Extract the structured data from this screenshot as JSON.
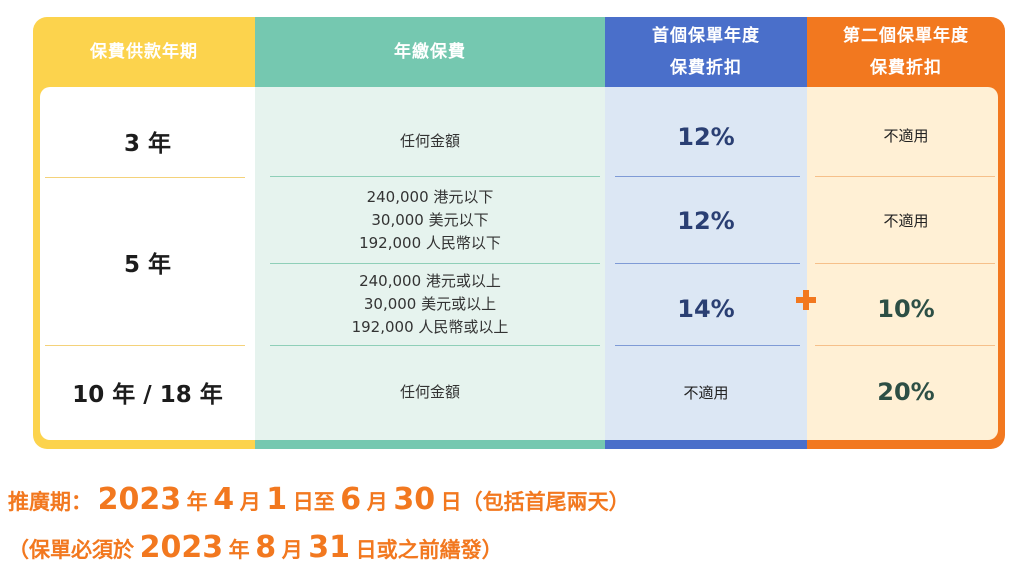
{
  "headers": {
    "term": "保費供款年期",
    "annual_premium": "年繳保費",
    "first_year_line1": "首個保單年度",
    "first_year_line2": "保費折扣",
    "second_year_line1": "第二個保單年度",
    "second_year_line2": "保費折扣"
  },
  "rows": {
    "r3": {
      "term": "3 年",
      "amount": "任何金額",
      "first": "12%",
      "second": "不適用"
    },
    "r5": {
      "term": "5 年",
      "a": {
        "amount_line1": "240,000 港元以下",
        "amount_line2": "30,000 美元以下",
        "amount_line3": "192,000 人民幣以下",
        "first": "12%",
        "second": "不適用"
      },
      "b": {
        "amount_line1": "240,000 港元或以上",
        "amount_line2": "30,000 美元或以上",
        "amount_line3": "192,000 人民幣或以上",
        "first": "14%",
        "second": "10%"
      }
    },
    "r10": {
      "term": "10 年 / 18 年",
      "amount": "任何金額",
      "first": "不適用",
      "second": "20%"
    }
  },
  "footer": {
    "line1": [
      "推廣期：",
      "2023",
      "年",
      "4",
      "月",
      "1",
      "日至",
      "6",
      "月",
      "30",
      "日（包括首尾兩天）"
    ],
    "line2": [
      "（保單必須於",
      "2023",
      "年",
      "8",
      "月",
      "31",
      "日或之前繕發）"
    ]
  },
  "colors": {
    "yellow": "#fcd34d",
    "teal": "#75c8b0",
    "blue": "#4a6fca",
    "orange": "#f2781f"
  },
  "icons": {
    "plus": "plus-icon"
  }
}
